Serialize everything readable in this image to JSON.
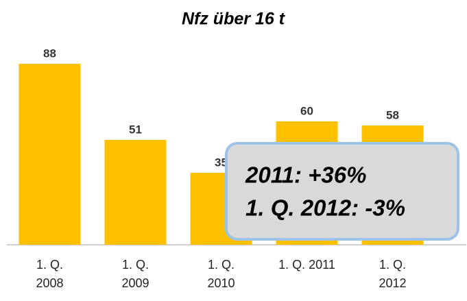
{
  "chart_data": {
    "type": "bar",
    "title": "Nfz über 16 t",
    "categories": [
      [
        "1. Q.",
        "2008"
      ],
      [
        "1. Q.",
        "2009"
      ],
      [
        "1. Q.",
        "2010"
      ],
      [
        "1. Q. 2011"
      ],
      [
        "1. Q.",
        "2012"
      ]
    ],
    "values": [
      88,
      51,
      35,
      60,
      58
    ],
    "color": "#ffc000",
    "ylim": [
      0,
      100
    ],
    "annotations": [
      "2011: +36%",
      "1. Q. 2012: -3%"
    ]
  }
}
